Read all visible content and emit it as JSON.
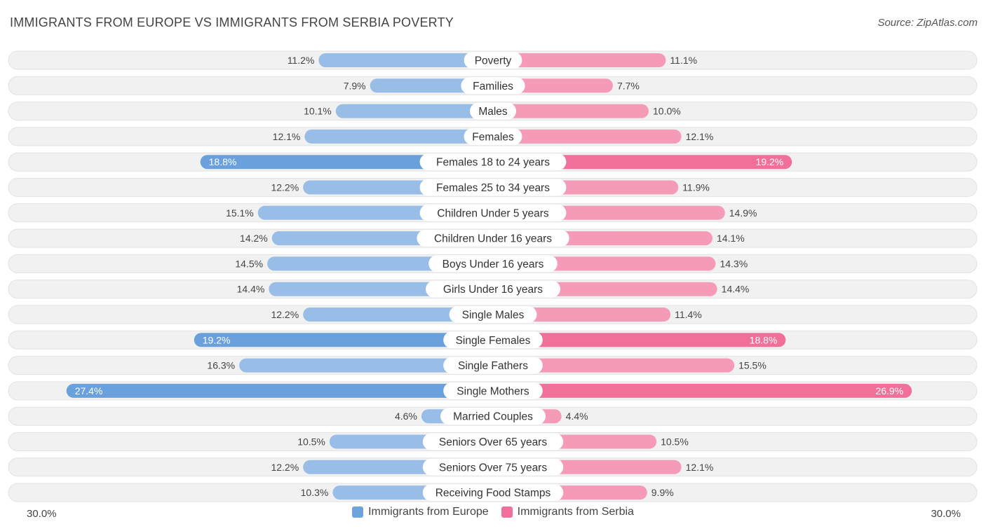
{
  "header": {
    "title": "IMMIGRANTS FROM EUROPE VS IMMIGRANTS FROM SERBIA POVERTY",
    "source": "Source: ZipAtlas.com"
  },
  "colors": {
    "europe": "#6ea3dc",
    "europe_light": "#a9c8ec",
    "serbia": "#f07099",
    "serbia_light": "#f7a8c1",
    "row_bg": "#f1f1f1"
  },
  "axis": {
    "left_label": "30.0%",
    "right_label": "30.0%"
  },
  "legend": {
    "europe": "Immigrants from Europe",
    "serbia": "Immigrants from Serbia"
  },
  "chart_data": {
    "type": "bar",
    "orientation": "horizontal-diverging",
    "title": "IMMIGRANTS FROM EUROPE VS IMMIGRANTS FROM SERBIA POVERTY",
    "xlim": [
      0,
      30
    ],
    "categories": [
      "Poverty",
      "Families",
      "Males",
      "Females",
      "Females 18 to 24 years",
      "Females 25 to 34 years",
      "Children Under 5 years",
      "Children Under 16 years",
      "Boys Under 16 years",
      "Girls Under 16 years",
      "Single Males",
      "Single Females",
      "Single Fathers",
      "Single Mothers",
      "Married Couples",
      "Seniors Over 65 years",
      "Seniors Over 75 years",
      "Receiving Food Stamps"
    ],
    "series": [
      {
        "name": "Immigrants from Europe",
        "values": [
          11.2,
          7.9,
          10.1,
          12.1,
          18.8,
          12.2,
          15.1,
          14.2,
          14.5,
          14.4,
          12.2,
          19.2,
          16.3,
          27.4,
          4.6,
          10.5,
          12.2,
          10.3
        ],
        "labels": [
          "11.2%",
          "7.9%",
          "10.1%",
          "12.1%",
          "18.8%",
          "12.2%",
          "15.1%",
          "14.2%",
          "14.5%",
          "14.4%",
          "12.2%",
          "19.2%",
          "16.3%",
          "27.4%",
          "4.6%",
          "10.5%",
          "12.2%",
          "10.3%"
        ]
      },
      {
        "name": "Immigrants from Serbia",
        "values": [
          11.1,
          7.7,
          10.0,
          12.1,
          19.2,
          11.9,
          14.9,
          14.1,
          14.3,
          14.4,
          11.4,
          18.8,
          15.5,
          26.9,
          4.4,
          10.5,
          12.1,
          9.9
        ],
        "labels": [
          "11.1%",
          "7.7%",
          "10.0%",
          "12.1%",
          "19.2%",
          "11.9%",
          "14.9%",
          "14.1%",
          "14.3%",
          "14.4%",
          "11.4%",
          "18.8%",
          "15.5%",
          "26.9%",
          "4.4%",
          "10.5%",
          "12.1%",
          "9.9%"
        ]
      }
    ]
  }
}
